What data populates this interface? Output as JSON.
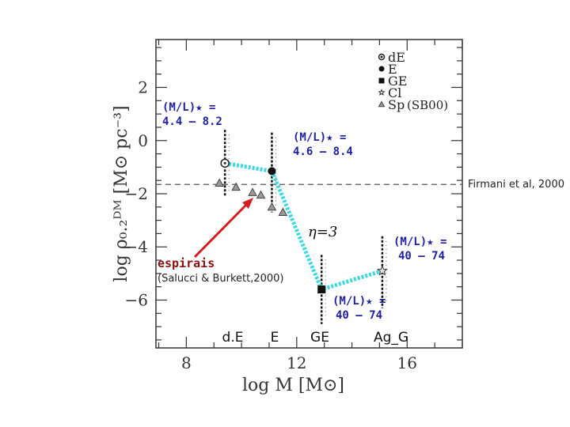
{
  "chart_data": {
    "type": "scatter",
    "xlabel": "log  M  [M⊙]",
    "ylabel": "log  ρ₀.₂ᴰᴹ  [M⊙  pc⁻³]",
    "xlim": [
      6.9,
      18.0
    ],
    "ylim": [
      -7.8,
      3.8
    ],
    "x_ticks": [
      8,
      12,
      16
    ],
    "y_ticks": [
      2,
      0,
      -2,
      -4,
      -6
    ],
    "x_tick_labels": [
      "8",
      "12",
      "16"
    ],
    "y_tick_labels": [
      "2",
      "0",
      "−2",
      "−4",
      "−6"
    ],
    "reference_line": {
      "y": -1.65,
      "label": "Firmani et al, 2000"
    },
    "legend": {
      "placement": "top-right",
      "entries": [
        "dE",
        "E",
        "GE",
        "Cl",
        "Sp"
      ],
      "note": "(SB00)"
    },
    "series": [
      {
        "name": "dE",
        "marker": "open-circle",
        "x": [
          9.4
        ],
        "y": [
          -0.85
        ],
        "y_range": [
          -2.1,
          0.4
        ]
      },
      {
        "name": "E",
        "marker": "filled-circle",
        "x": [
          11.1
        ],
        "y": [
          -1.15
        ],
        "y_range": [
          -2.7,
          0.3
        ]
      },
      {
        "name": "GE",
        "marker": "filled-square",
        "x": [
          12.9
        ],
        "y": [
          -5.6
        ],
        "y_range": [
          -6.9,
          -4.3
        ]
      },
      {
        "name": "Cl",
        "marker": "star",
        "x": [
          15.1
        ],
        "y": [
          -4.9
        ],
        "y_range": [
          -6.3,
          -3.6
        ]
      },
      {
        "name": "Sp",
        "marker": "triangle",
        "x": [
          9.2,
          9.8,
          10.4,
          10.7,
          11.1,
          11.5
        ],
        "y": [
          -1.6,
          -1.75,
          -1.95,
          -2.05,
          -2.5,
          -2.7
        ]
      }
    ],
    "trend_line": {
      "x": [
        9.4,
        11.1,
        12.9,
        15.1
      ],
      "y": [
        -0.85,
        -1.15,
        -5.6,
        -4.9
      ]
    },
    "annotations": [
      {
        "text_top": "(M/L)★ =",
        "text_bottom": "4.4 – 8.2"
      },
      {
        "text_top": "(M/L)★ =",
        "text_bottom": "4.6 – 8.4"
      },
      {
        "text_top": "(M/L)★ =",
        "text_bottom": "40 – 74"
      },
      {
        "text_top": "(M/L)★ =",
        "text_bottom": "40 – 74"
      }
    ],
    "eta_label": "η=3",
    "spirals_label": "espirais",
    "spirals_source": "(Salucci & Burkett,2000)",
    "category_labels": [
      "d.E",
      "E",
      "GE",
      "Ag_G"
    ],
    "colors": {
      "trend": "#3dd8df",
      "annotation": "#1f1fa0",
      "arrow": "#d31f1f",
      "spirals": "#8a1010",
      "axis": "#333333"
    }
  }
}
